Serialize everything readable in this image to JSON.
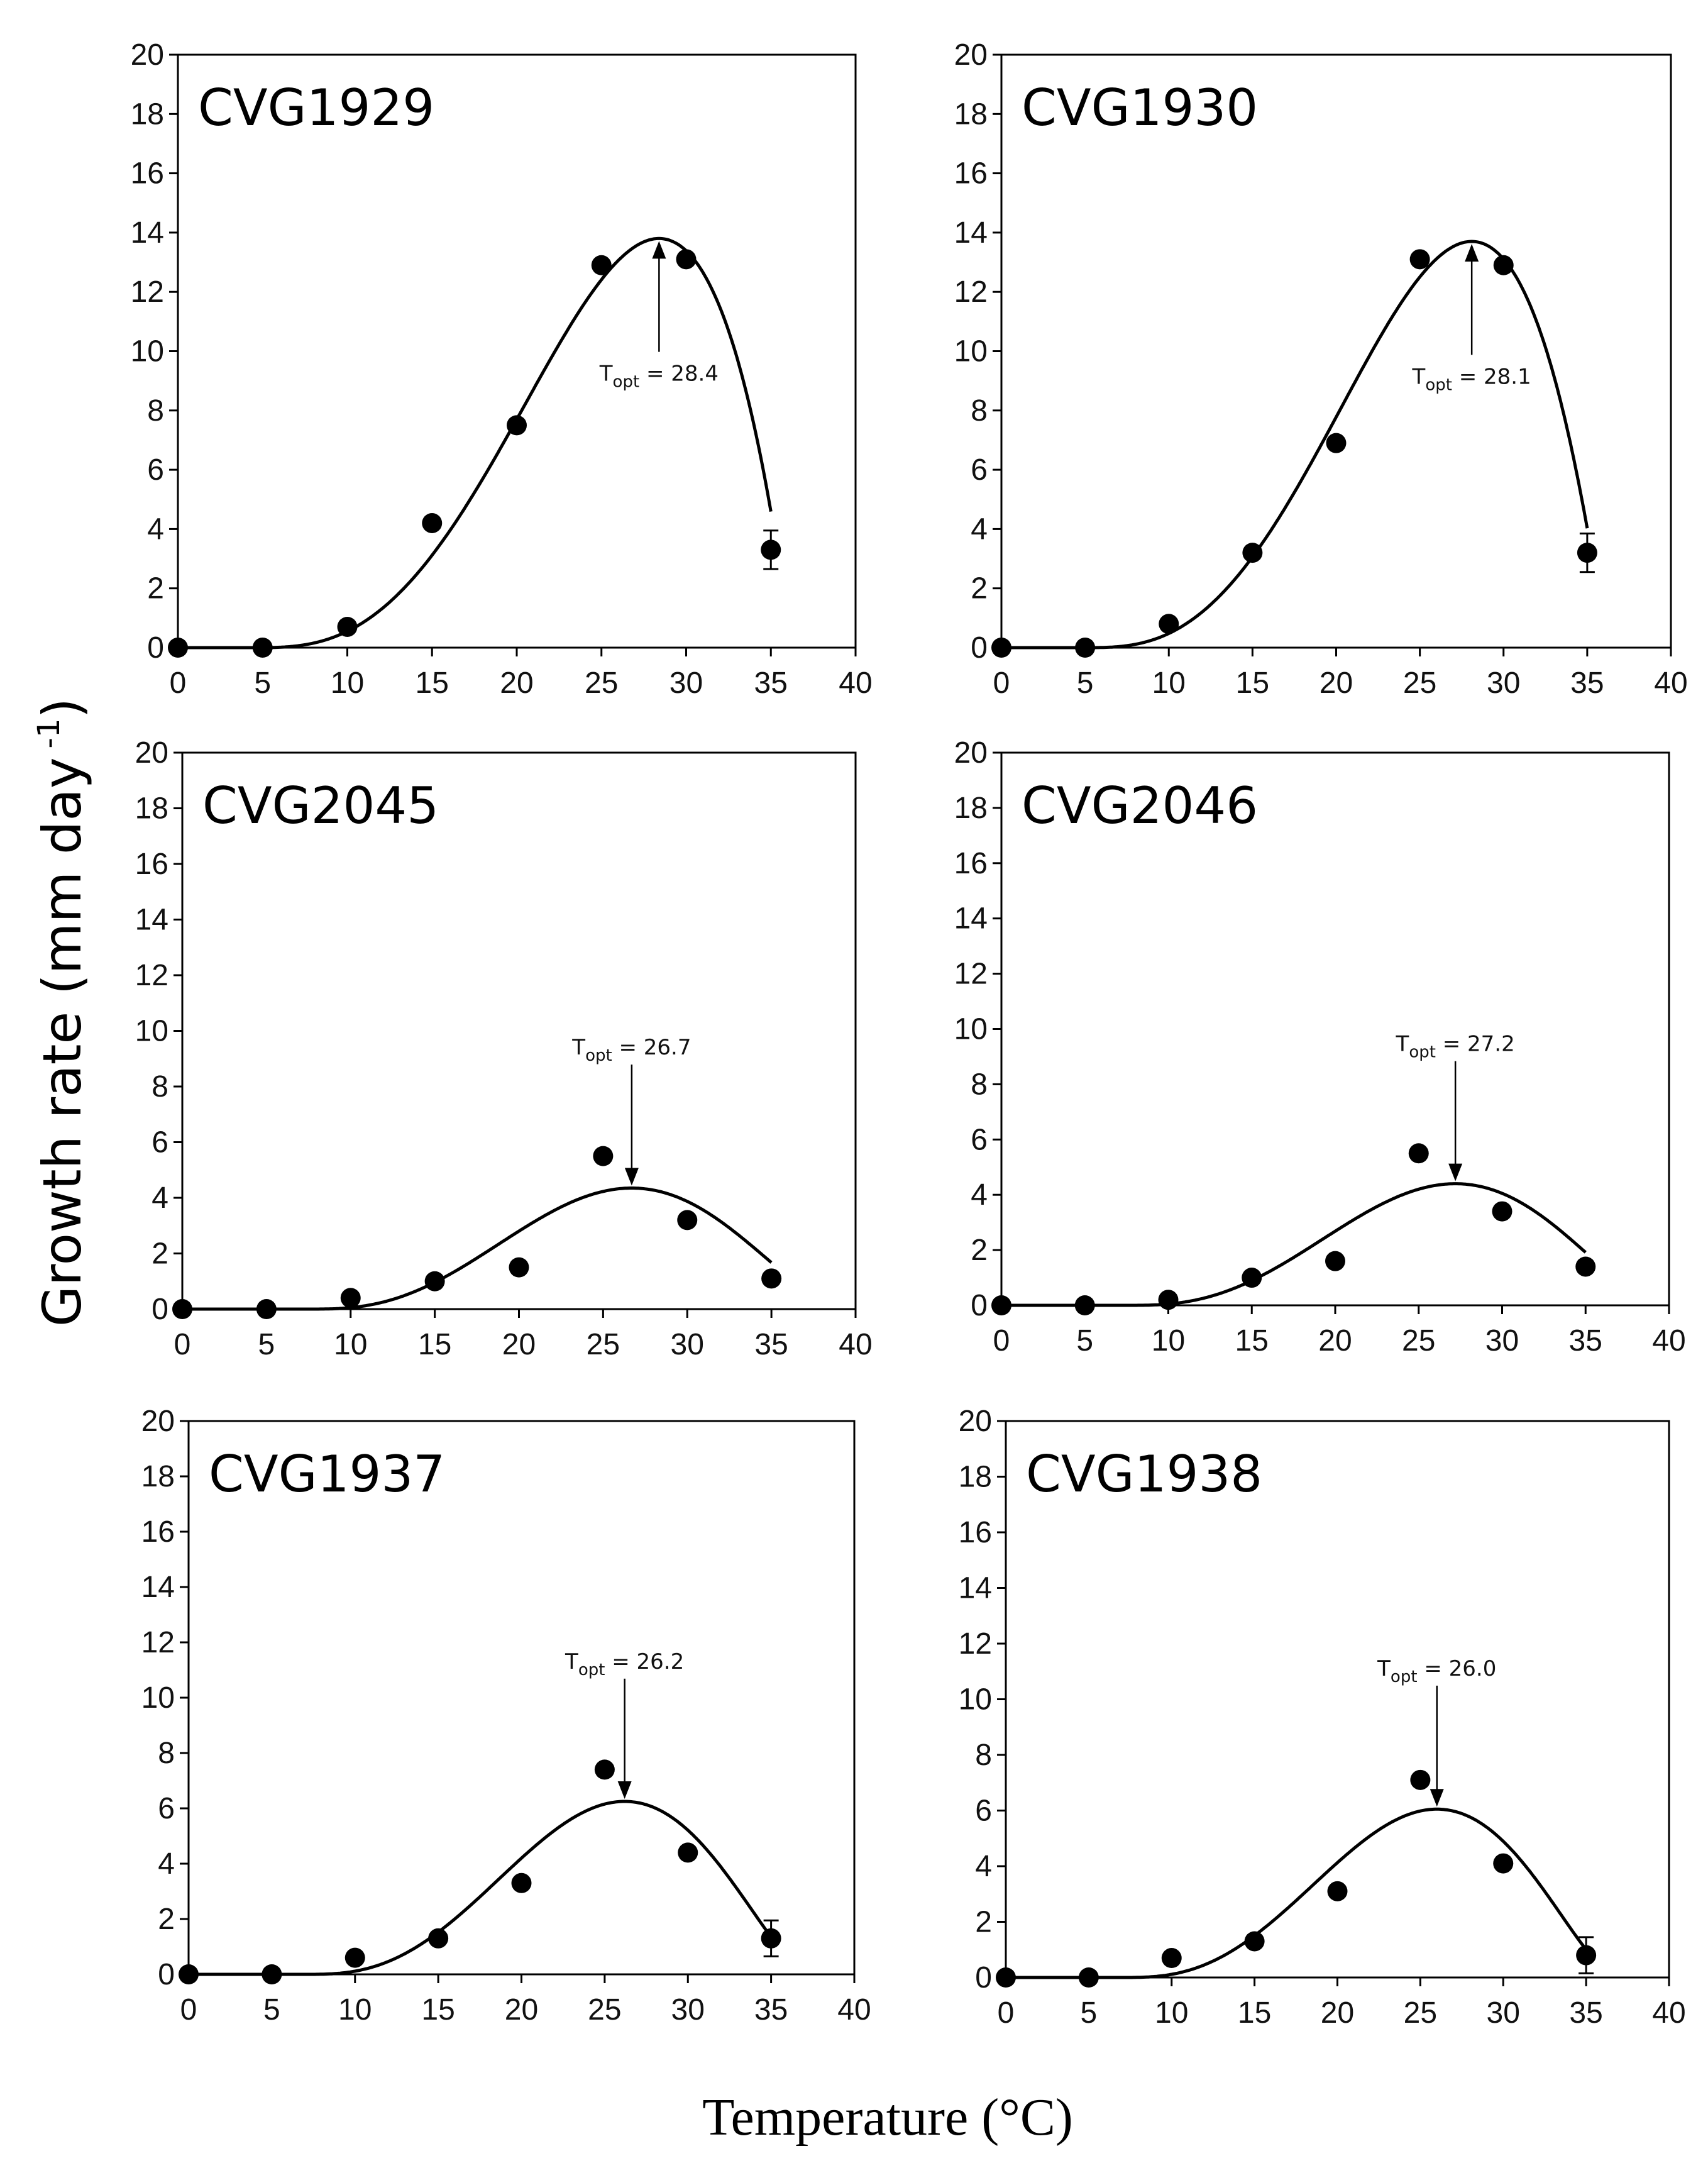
{
  "figure": {
    "ylabel_main": "Growth rate (mm day",
    "ylabel_sup": "-1",
    "ylabel_close": ")",
    "xlabel": "Temperature (°C)"
  },
  "chart_data": [
    {
      "type": "scatter",
      "title": "CVG1929",
      "xlabel": "Temperature (°C)",
      "ylabel": "Growth rate (mm day -1)",
      "xlim": [
        0,
        40
      ],
      "ylim": [
        0,
        20
      ],
      "xticks": [
        0,
        5,
        10,
        15,
        20,
        25,
        30,
        35,
        40
      ],
      "yticks": [
        0,
        2,
        4,
        6,
        8,
        10,
        12,
        14,
        16,
        18,
        20
      ],
      "x": [
        0,
        5,
        10,
        15,
        20,
        25,
        30,
        35
      ],
      "values": [
        0,
        0,
        0.7,
        4.2,
        7.5,
        12.9,
        13.1,
        3.3
      ],
      "error": [
        0,
        0,
        0,
        0,
        0,
        0,
        0,
        0.65
      ],
      "fit_curve": {
        "Tmin": 4.5,
        "Topt": 28.4,
        "Tmax": 36.2,
        "peak": 13.8
      },
      "annotation": {
        "prefix": "T",
        "sub": "opt",
        "suffix": " = 28.4",
        "x": 28.4,
        "arrow": "up"
      }
    },
    {
      "type": "scatter",
      "title": "CVG1930",
      "xlabel": "Temperature (°C)",
      "ylabel": "Growth rate (mm day -1)",
      "xlim": [
        0,
        40
      ],
      "ylim": [
        0,
        20
      ],
      "xticks": [
        0,
        5,
        10,
        15,
        20,
        25,
        30,
        35,
        40
      ],
      "yticks": [
        0,
        2,
        4,
        6,
        8,
        10,
        12,
        14,
        16,
        18,
        20
      ],
      "x": [
        0,
        5,
        10,
        15,
        20,
        25,
        30,
        35
      ],
      "values": [
        0,
        0,
        0.8,
        3.2,
        6.9,
        13.1,
        12.9,
        3.2
      ],
      "error": [
        0,
        0,
        0,
        0,
        0,
        0,
        0,
        0.65
      ],
      "fit_curve": {
        "Tmin": 5.0,
        "Topt": 28.1,
        "Tmax": 36.2,
        "peak": 13.7
      },
      "annotation": {
        "prefix": "T",
        "sub": "opt",
        "suffix": " = 28.1",
        "x": 28.1,
        "arrow": "up"
      }
    },
    {
      "type": "scatter",
      "title": "CVG2045",
      "xlabel": "Temperature (°C)",
      "ylabel": "Growth rate (mm day -1)",
      "xlim": [
        0,
        40
      ],
      "ylim": [
        0,
        20
      ],
      "xticks": [
        0,
        5,
        10,
        15,
        20,
        25,
        30,
        35,
        40
      ],
      "yticks": [
        0,
        2,
        4,
        6,
        8,
        10,
        12,
        14,
        16,
        18,
        20
      ],
      "x": [
        0,
        5,
        10,
        15,
        20,
        25,
        30,
        35
      ],
      "values": [
        0,
        0,
        0.4,
        1.0,
        1.5,
        5.5,
        3.2,
        1.1
      ],
      "error": [
        0,
        0,
        0,
        0,
        0,
        0,
        0,
        0
      ],
      "fit_curve": {
        "Tmin": 7.5,
        "Topt": 26.7,
        "Tmax": 40.0,
        "peak": 4.35
      },
      "annotation": {
        "prefix": "T",
        "sub": "opt",
        "suffix": " = 26.7",
        "x": 26.7,
        "arrow": "down"
      }
    },
    {
      "type": "scatter",
      "title": "CVG2046",
      "xlabel": "Temperature (°C)",
      "ylabel": "Growth rate (mm day -1)",
      "xlim": [
        0,
        40
      ],
      "ylim": [
        0,
        20
      ],
      "xticks": [
        0,
        5,
        10,
        15,
        20,
        25,
        30,
        35,
        40
      ],
      "yticks": [
        0,
        2,
        4,
        6,
        8,
        10,
        12,
        14,
        16,
        18,
        20
      ],
      "x": [
        0,
        5,
        10,
        15,
        20,
        25,
        30,
        35
      ],
      "values": [
        0,
        0,
        0.2,
        1.0,
        1.6,
        5.5,
        3.4,
        1.4
      ],
      "error": [
        0,
        0,
        0,
        0,
        0,
        0,
        0,
        0
      ],
      "fit_curve": {
        "Tmin": 7.5,
        "Topt": 27.2,
        "Tmax": 40.0,
        "peak": 4.4
      },
      "annotation": {
        "prefix": "T",
        "sub": "opt",
        "suffix": " = 27.2",
        "x": 27.2,
        "arrow": "down"
      }
    },
    {
      "type": "scatter",
      "title": "CVG1937",
      "xlabel": "Temperature (°C)",
      "ylabel": "Growth rate (mm day -1)",
      "xlim": [
        0,
        40
      ],
      "ylim": [
        0,
        20
      ],
      "xticks": [
        0,
        5,
        10,
        15,
        20,
        25,
        30,
        35,
        40
      ],
      "yticks": [
        0,
        2,
        4,
        6,
        8,
        10,
        12,
        14,
        16,
        18,
        20
      ],
      "x": [
        0,
        5,
        10,
        15,
        20,
        25,
        30,
        35
      ],
      "values": [
        0,
        0,
        0.6,
        1.3,
        3.3,
        7.4,
        4.4,
        1.3
      ],
      "error": [
        0,
        0,
        0,
        0,
        0,
        0,
        0,
        0.65
      ],
      "fit_curve": {
        "Tmin": 7.0,
        "Topt": 26.2,
        "Tmax": 37.5,
        "peak": 6.25
      },
      "annotation": {
        "prefix": "T",
        "sub": "opt",
        "suffix": " = 26.2",
        "x": 26.2,
        "arrow": "down"
      }
    },
    {
      "type": "scatter",
      "title": "CVG1938",
      "xlabel": "Temperature (°C)",
      "ylabel": "Growth rate (mm day -1)",
      "xlim": [
        0,
        40
      ],
      "ylim": [
        0,
        20
      ],
      "xticks": [
        0,
        5,
        10,
        15,
        20,
        25,
        30,
        35,
        40
      ],
      "yticks": [
        0,
        2,
        4,
        6,
        8,
        10,
        12,
        14,
        16,
        18,
        20
      ],
      "x": [
        0,
        5,
        10,
        15,
        20,
        25,
        30,
        35
      ],
      "values": [
        0,
        0,
        0.7,
        1.3,
        3.1,
        7.1,
        4.1,
        0.8
      ],
      "error": [
        0,
        0,
        0,
        0,
        0,
        0,
        0,
        0.65
      ],
      "fit_curve": {
        "Tmin": 7.0,
        "Topt": 26.0,
        "Tmax": 37.0,
        "peak": 6.05
      },
      "annotation": {
        "prefix": "T",
        "sub": "opt",
        "suffix": " = 26.0",
        "x": 26.0,
        "arrow": "down"
      }
    }
  ]
}
